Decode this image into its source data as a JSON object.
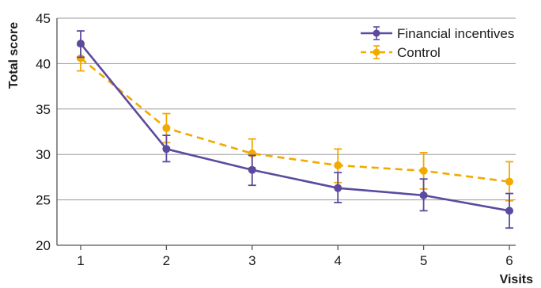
{
  "chart_data": {
    "type": "line",
    "xlabel": "Visits",
    "ylabel": "Total score",
    "x": [
      1,
      2,
      3,
      4,
      5,
      6
    ],
    "xticks": [
      "1",
      "2",
      "3",
      "4",
      "5",
      "6"
    ],
    "ylim": [
      20,
      45
    ],
    "yticks": [
      "20",
      "25",
      "30",
      "35",
      "40",
      "45"
    ],
    "grid": true,
    "legend_position": "top-right",
    "series": [
      {
        "name": "Financial incentives",
        "color": "#5b4a9e",
        "line_style": "solid",
        "values": [
          42.2,
          30.6,
          28.3,
          26.3,
          25.5,
          23.8
        ],
        "error_low": [
          40.7,
          29.2,
          26.6,
          24.7,
          23.8,
          21.9
        ],
        "error_high": [
          43.6,
          32.1,
          29.9,
          28.0,
          27.3,
          25.7
        ]
      },
      {
        "name": "Control",
        "color": "#f2a900",
        "line_style": "dashed",
        "values": [
          40.6,
          32.9,
          30.1,
          28.8,
          28.2,
          27.0
        ],
        "error_low": [
          39.2,
          31.3,
          28.5,
          26.9,
          26.2,
          24.9
        ],
        "error_high": [
          42.0,
          34.5,
          31.7,
          30.6,
          30.2,
          29.2
        ]
      }
    ]
  }
}
